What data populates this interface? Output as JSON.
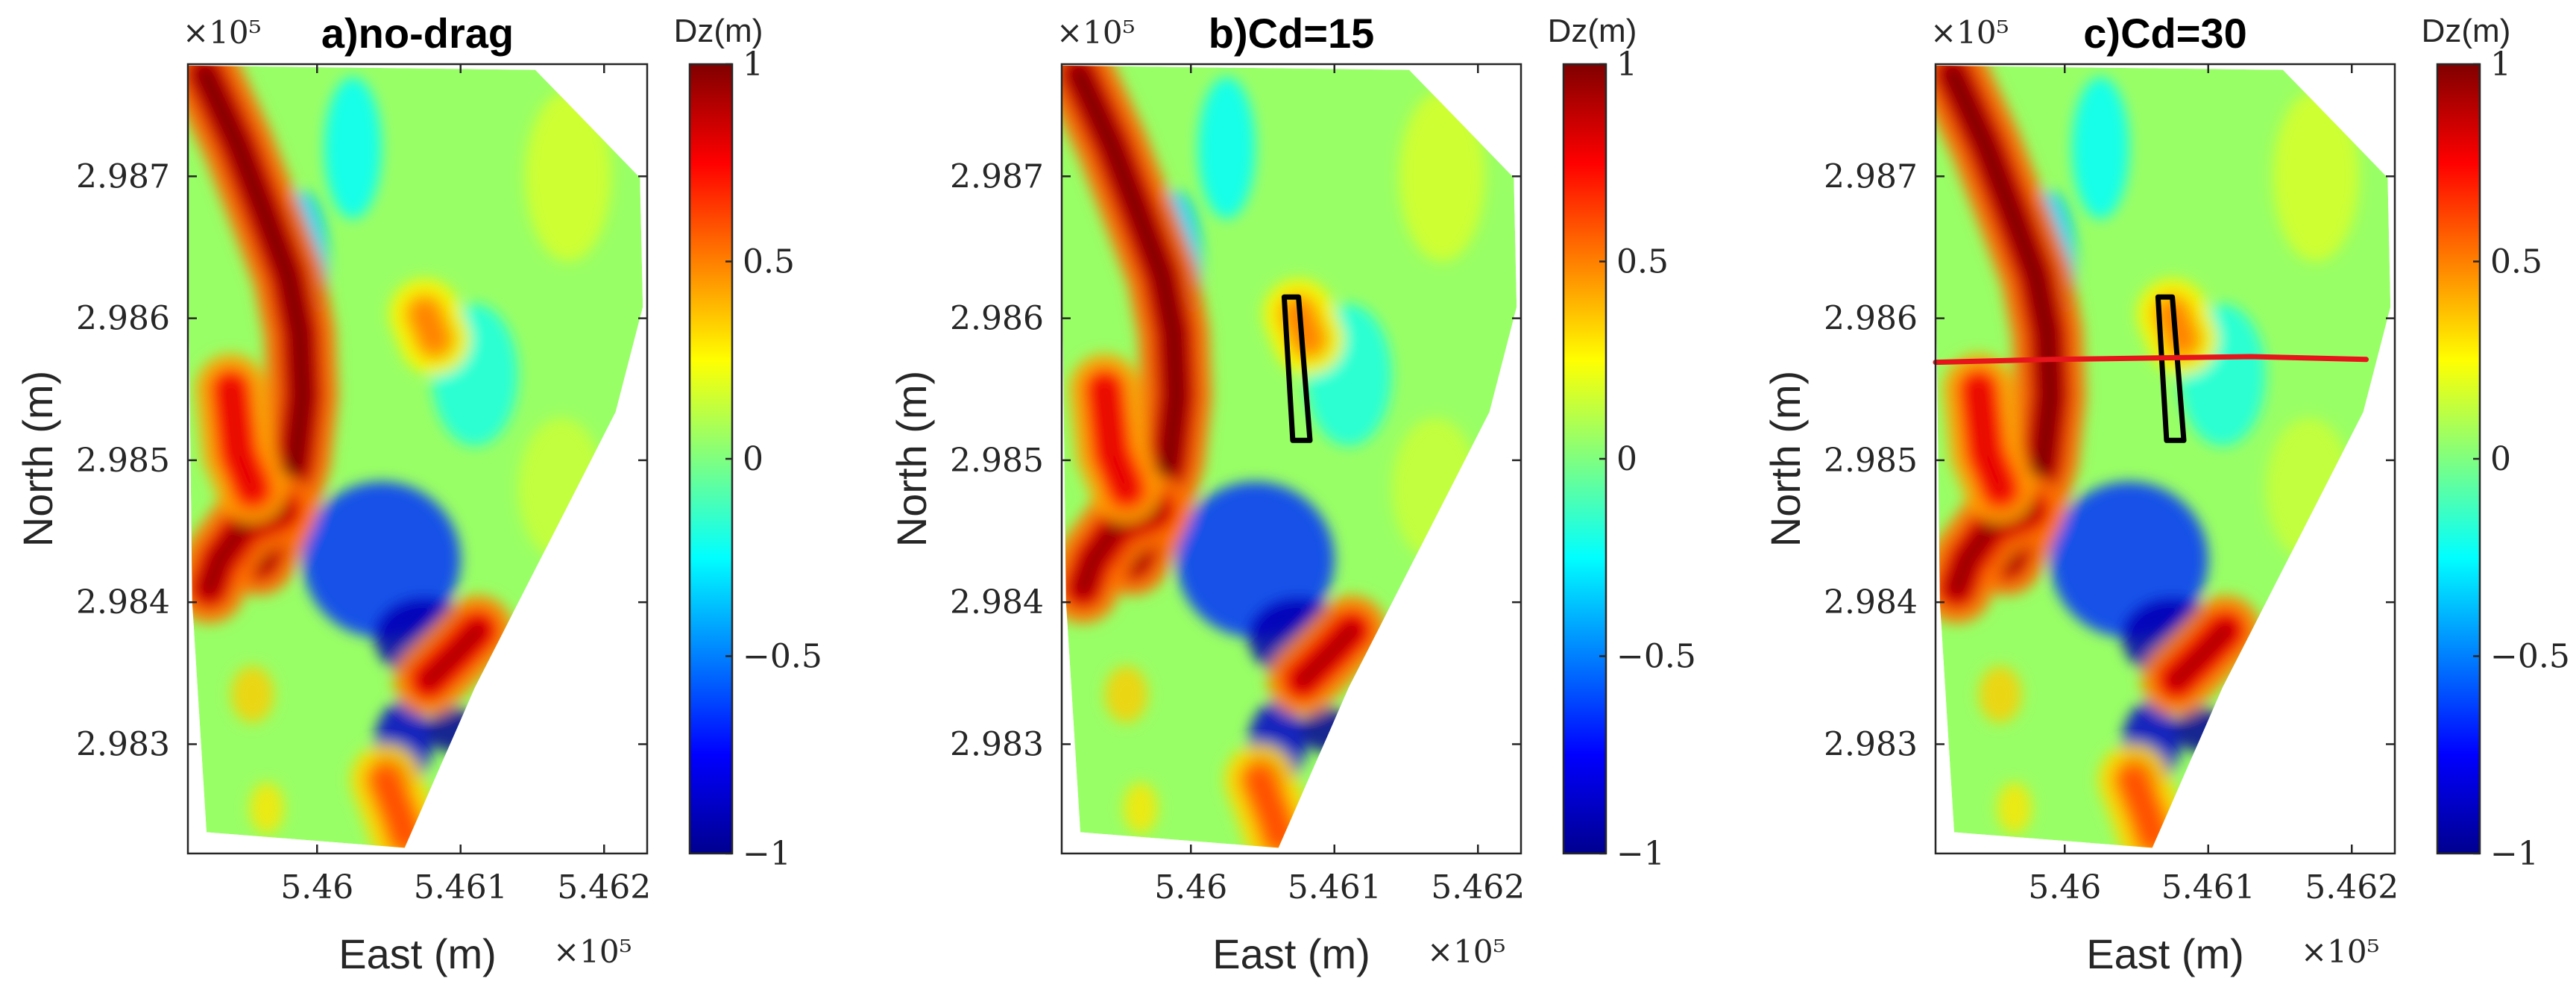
{
  "chart_data": [
    {
      "type": "heatmap",
      "title": "a)no-drag",
      "xlabel": "East (m)",
      "ylabel": "North (m)",
      "x_exponent": "×10⁵",
      "y_exponent": "×10⁵",
      "xlim": [
        5.4591,
        5.4623
      ],
      "ylim": [
        2.98223,
        2.98779
      ],
      "xticks": [
        5.46,
        5.461,
        5.462
      ],
      "xtick_labels": [
        "5.46",
        "5.461",
        "5.462"
      ],
      "yticks": [
        2.983,
        2.984,
        2.985,
        2.986,
        2.987
      ],
      "ytick_labels": [
        "2.983",
        "2.984",
        "2.985",
        "2.986",
        "2.987"
      ],
      "colorbar": {
        "label": "Dz(m)",
        "colormap": "jet",
        "clim": [
          -1,
          1
        ],
        "ticks": [
          1,
          0.5,
          0,
          -0.5,
          -1
        ],
        "tick_labels": [
          "1",
          "0.5",
          "0",
          "−0.5",
          "−1"
        ]
      },
      "overlays": []
    },
    {
      "type": "heatmap",
      "title": "b)Cd=15",
      "xlabel": "East (m)",
      "ylabel": "North (m)",
      "x_exponent": "×10⁵",
      "y_exponent": "×10⁵",
      "xlim": [
        5.4591,
        5.4623
      ],
      "ylim": [
        2.98223,
        2.98779
      ],
      "xticks": [
        5.46,
        5.461,
        5.462
      ],
      "xtick_labels": [
        "5.46",
        "5.461",
        "5.462"
      ],
      "yticks": [
        2.983,
        2.984,
        2.985,
        2.986,
        2.987
      ],
      "ytick_labels": [
        "2.983",
        "2.984",
        "2.985",
        "2.986",
        "2.987"
      ],
      "colorbar": {
        "label": "Dz(m)",
        "colormap": "jet",
        "clim": [
          -1,
          1
        ],
        "ticks": [
          1,
          0.5,
          0,
          -0.5,
          -1
        ],
        "tick_labels": [
          "1",
          "0.5",
          "0",
          "−0.5",
          "−1"
        ]
      },
      "overlays": [
        {
          "kind": "polygon",
          "color": "#000000",
          "points": [
            [
              5.46065,
              2.98615
            ],
            [
              5.46075,
              2.98615
            ],
            [
              5.46083,
              2.98514
            ],
            [
              5.46071,
              2.98514
            ]
          ]
        }
      ]
    },
    {
      "type": "heatmap",
      "title": "c)Cd=30",
      "xlabel": "East (m)",
      "ylabel": "North (m)",
      "x_exponent": "×10⁵",
      "y_exponent": "×10⁵",
      "xlim": [
        5.4591,
        5.4623
      ],
      "ylim": [
        2.98223,
        2.98779
      ],
      "xticks": [
        5.46,
        5.461,
        5.462
      ],
      "xtick_labels": [
        "5.46",
        "5.461",
        "5.462"
      ],
      "yticks": [
        2.983,
        2.984,
        2.985,
        2.986,
        2.987
      ],
      "ytick_labels": [
        "2.983",
        "2.984",
        "2.985",
        "2.986",
        "2.987"
      ],
      "colorbar": {
        "label": "Dz(m)",
        "colormap": "jet",
        "clim": [
          -1,
          1
        ],
        "ticks": [
          1,
          0.5,
          0,
          -0.5,
          -1
        ],
        "tick_labels": [
          "1",
          "0.5",
          "0",
          "−0.5",
          "−1"
        ]
      },
      "overlays": [
        {
          "kind": "polygon",
          "color": "#000000",
          "points": [
            [
              5.46065,
              2.98615
            ],
            [
              5.46075,
              2.98615
            ],
            [
              5.46083,
              2.98514
            ],
            [
              5.46071,
              2.98514
            ]
          ]
        },
        {
          "kind": "line",
          "color": "#e8141c",
          "points": [
            [
              5.4591,
              2.98569
            ],
            [
              5.4599,
              2.98571
            ],
            [
              5.4606,
              2.98572
            ],
            [
              5.4613,
              2.98573
            ],
            [
              5.4621,
              2.98571
            ]
          ]
        }
      ]
    }
  ],
  "field_features": {
    "domain_boundary": [
      [
        5.4591,
        2.98778
      ],
      [
        5.46152,
        2.98775
      ],
      [
        5.46225,
        2.98699
      ],
      [
        5.46227,
        2.98608
      ],
      [
        5.46208,
        2.98534
      ],
      [
        5.4611,
        2.9834
      ],
      [
        5.46061,
        2.98227
      ],
      [
        5.45923,
        2.98238
      ],
      [
        5.45913,
        2.984
      ],
      [
        5.4591,
        2.9865
      ]
    ],
    "positive_ridges": [
      {
        "path": [
          [
            5.45922,
            2.98772
          ],
          [
            5.45945,
            2.98722
          ],
          [
            5.45965,
            2.9867
          ],
          [
            5.4598,
            2.9863
          ],
          [
            5.45988,
            2.9859
          ],
          [
            5.4599,
            2.98545
          ],
          [
            5.45985,
            2.985
          ],
          [
            5.45975,
            2.98465
          ],
          [
            5.4596,
            2.9843
          ]
        ],
        "strength": 1.0
      },
      {
        "path": [
          [
            5.45975,
            2.98465
          ],
          [
            5.4595,
            2.98455
          ],
          [
            5.45932,
            2.9843
          ],
          [
            5.45925,
            2.9841
          ]
        ],
        "strength": 0.95
      },
      {
        "path": [
          [
            5.4594,
            2.9855
          ],
          [
            5.45945,
            2.98505
          ],
          [
            5.45955,
            2.9848
          ]
        ],
        "strength": 0.8
      },
      {
        "path": [
          [
            5.46078,
            2.98345
          ],
          [
            5.46098,
            2.98365
          ],
          [
            5.46112,
            2.9838
          ]
        ],
        "strength": 0.9
      },
      {
        "path": [
          [
            5.46048,
            2.98275
          ],
          [
            5.46058,
            2.98248
          ],
          [
            5.46062,
            2.98235
          ]
        ],
        "strength": 0.6
      },
      {
        "path": [
          [
            5.46075,
            2.98603
          ],
          [
            5.46082,
            2.98585
          ]
        ],
        "strength": 0.5
      }
    ],
    "negative_zones": [
      {
        "center": [
          5.46045,
          2.9843
        ],
        "radius": [
          0.00055,
          0.00055
        ],
        "strength": -0.65
      },
      {
        "center": [
          5.46075,
          2.98375
        ],
        "radius": [
          0.00035,
          0.00028
        ],
        "strength": -0.9
      },
      {
        "center": [
          5.4606,
          2.983
        ],
        "radius": [
          0.0002,
          0.0003
        ],
        "strength": -0.85
      },
      {
        "center": [
          5.46095,
          2.9831
        ],
        "radius": [
          0.00018,
          0.00016
        ],
        "strength": -0.95
      },
      {
        "center": [
          5.4599,
          2.9864
        ],
        "radius": [
          0.00018,
          0.0005
        ],
        "strength": -0.35
      },
      {
        "center": [
          5.46025,
          2.9872
        ],
        "radius": [
          0.0002,
          0.0005
        ],
        "strength": -0.25
      },
      {
        "center": [
          5.4611,
          2.9856
        ],
        "radius": [
          0.0003,
          0.0005
        ],
        "strength": -0.2
      }
    ],
    "positive_spots": [
      {
        "center": [
          5.45955,
          2.98335
        ],
        "radius": [
          0.00015,
          0.0002
        ],
        "strength": 0.35
      },
      {
        "center": [
          5.45965,
          2.98255
        ],
        "radius": [
          0.00012,
          0.00018
        ],
        "strength": 0.3
      },
      {
        "center": [
          5.46175,
          2.987
        ],
        "radius": [
          0.0003,
          0.0006
        ],
        "strength": 0.18
      },
      {
        "center": [
          5.4617,
          2.9848
        ],
        "radius": [
          0.0003,
          0.0005
        ],
        "strength": 0.15
      }
    ]
  }
}
